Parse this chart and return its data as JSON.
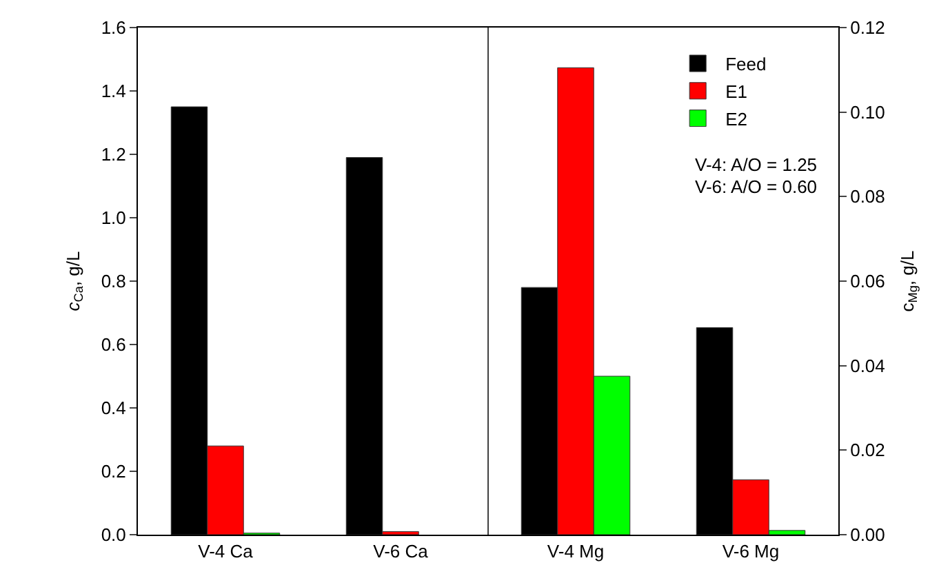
{
  "chart_data": {
    "type": "bar",
    "categories": [
      "V-4 Ca",
      "V-6 Ca",
      "V-4 Mg",
      "V-6 Mg"
    ],
    "ylabel": "c$_{Ca}$, g/L",
    "y2label": "c$_{Mg}$, g/L",
    "ylim": [
      0,
      1.6
    ],
    "yticks": [
      {
        "value": 0,
        "label": "0.0"
      },
      0.2,
      0.4,
      0.6,
      0.8,
      {
        "value": 1,
        "label": "1.0"
      },
      1.2,
      1.4,
      1.6
    ],
    "y2lim": [
      0,
      0.12
    ],
    "y2ticks": [
      {
        "value": 0,
        "label": "0.00"
      },
      0.02,
      0.04,
      0.06,
      0.08,
      {
        "value": 0.1,
        "label": "0.10"
      },
      0.12
    ],
    "series": [
      {
        "name": "Feed",
        "color": "#000000",
        "values": [
          1.35,
          1.19,
          null,
          null
        ]
      },
      {
        "name": "E1",
        "color": "#ff0000",
        "values": [
          0.28,
          0.01,
          null,
          null
        ]
      },
      {
        "name": "E2",
        "color": "#00ff00",
        "values": [
          0.005,
          null,
          null,
          null
        ]
      },
      {
        "color": "#000000",
        "axis": "y2",
        "values": [
          null,
          null,
          0.0585,
          0.049
        ]
      },
      {
        "color": "#ff0000",
        "axis": "y2",
        "values": [
          null,
          null,
          0.1105,
          0.013
        ]
      },
      {
        "color": "#00ff00",
        "axis": "y2",
        "values": [
          null,
          null,
          0.0375,
          0.001
        ]
      }
    ],
    "annotations": [
      "V-4: A/O = 1.25",
      "V-6: A/O = 0.60"
    ],
    "legend": "top right"
  }
}
